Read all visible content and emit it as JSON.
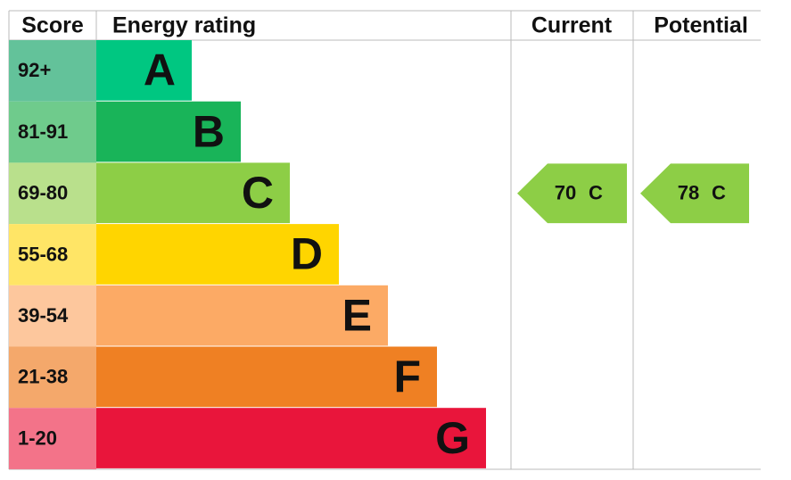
{
  "header": {
    "score": "Score",
    "rating": "Energy rating",
    "current": "Current",
    "potential": "Potential"
  },
  "rows": [
    {
      "score": "92+",
      "letter": "A",
      "color": "#00c781",
      "score_color": "#63c29a"
    },
    {
      "score": "81-91",
      "letter": "B",
      "color": "#19b459",
      "score_color": "#6fcb8c"
    },
    {
      "score": "69-80",
      "letter": "C",
      "color": "#8dce46",
      "score_color": "#b9e08c"
    },
    {
      "score": "55-68",
      "letter": "D",
      "color": "#ffd500",
      "score_color": "#ffe566"
    },
    {
      "score": "39-54",
      "letter": "E",
      "color": "#fcaa65",
      "score_color": "#fdc79d"
    },
    {
      "score": "21-38",
      "letter": "F",
      "color": "#ef8023",
      "score_color": "#f4a86b"
    },
    {
      "score": "1-20",
      "letter": "G",
      "color": "#e9153b",
      "score_color": "#f37389"
    }
  ],
  "current": {
    "score": 70,
    "band": "C"
  },
  "potential": {
    "score": 78,
    "band": "C"
  }
}
